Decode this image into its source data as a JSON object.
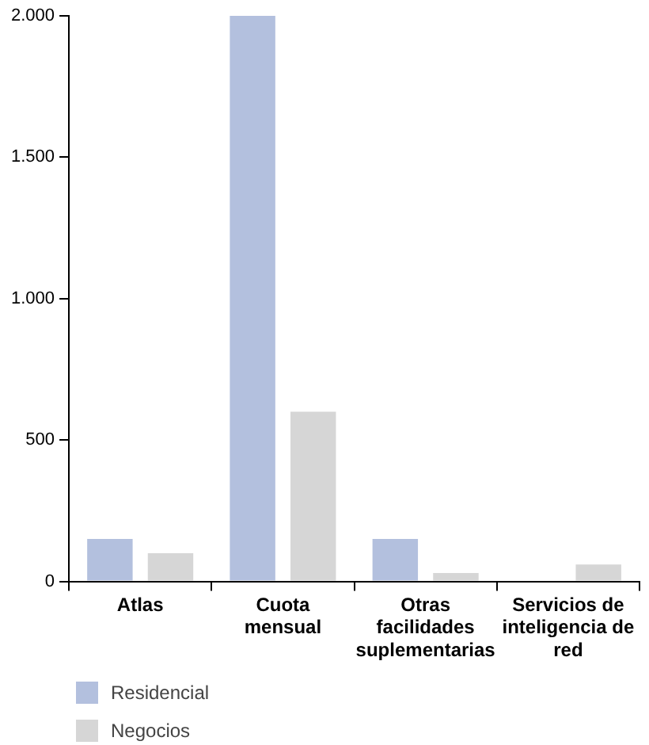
{
  "chart_data": {
    "type": "bar",
    "categories": [
      "Atlas",
      "Cuota mensual",
      "Otras facilidades suplementarias",
      "Servicios de inteligencia de red"
    ],
    "series": [
      {
        "name": "Residencial",
        "color": "#b3c0de",
        "values": [
          150,
          2000,
          150,
          0
        ]
      },
      {
        "name": "Negocios",
        "color": "#d6d6d6",
        "values": [
          100,
          600,
          30,
          60
        ]
      }
    ],
    "ylim": [
      0,
      2000
    ],
    "yticks": [
      {
        "value": 0,
        "label": "0"
      },
      {
        "value": 500,
        "label": "500"
      },
      {
        "value": 1000,
        "label": "1.000"
      },
      {
        "value": 1500,
        "label": "1.500"
      },
      {
        "value": 2000,
        "label": "2.000"
      }
    ],
    "grid": false,
    "legend": "bottom left"
  }
}
